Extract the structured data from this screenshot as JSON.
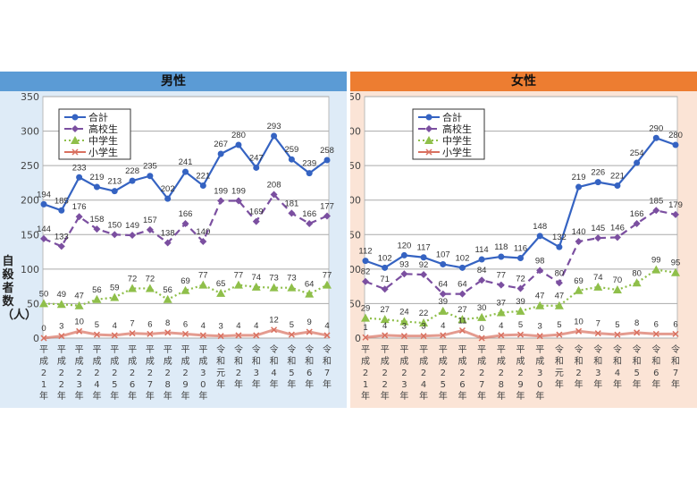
{
  "chart_data": [
    {
      "type": "line",
      "title": "男性",
      "ylabel": "自殺者数（人）",
      "ylim": [
        0,
        350
      ],
      "yticks": [
        0,
        50,
        100,
        150,
        200,
        250,
        300,
        350
      ],
      "grid": true,
      "legend": "top-left",
      "header_color": "#5b9bd5",
      "background_color": "#deebf7",
      "categories": [
        "平成21年",
        "平成22年",
        "平成23年",
        "平成24年",
        "平成25年",
        "平成26年",
        "平成27年",
        "平成28年",
        "平成29年",
        "平成30年",
        "令和元年",
        "令和2年",
        "令和3年",
        "令和4年",
        "令和5年",
        "令和6年",
        "令和7年"
      ],
      "series": [
        {
          "name": "合計",
          "color": "#3563c2",
          "marker": "circle",
          "dash": "solid",
          "values": [
            194,
            185,
            233,
            219,
            213,
            228,
            235,
            202,
            241,
            221,
            267,
            280,
            247,
            293,
            259,
            239,
            258
          ]
        },
        {
          "name": "高校生",
          "color": "#7b4fa0",
          "marker": "diamond",
          "dash": "dashed",
          "values": [
            144,
            133,
            176,
            158,
            150,
            149,
            157,
            138,
            166,
            140,
            199,
            199,
            169,
            208,
            181,
            166,
            177
          ]
        },
        {
          "name": "中学生",
          "color": "#8fbf4a",
          "marker": "triangle",
          "dash": "dotted",
          "values": [
            50,
            49,
            47,
            56,
            59,
            72,
            72,
            56,
            69,
            77,
            65,
            77,
            74,
            73,
            73,
            64,
            77
          ]
        },
        {
          "name": "小学生",
          "color": "#d9705f",
          "marker": "x",
          "dash": "solid",
          "values": [
            0,
            3,
            10,
            5,
            4,
            7,
            6,
            8,
            6,
            4,
            3,
            4,
            4,
            12,
            5,
            9,
            4
          ]
        }
      ]
    },
    {
      "type": "line",
      "title": "女性",
      "ylim": [
        0,
        350
      ],
      "yticks": [
        0,
        50,
        100,
        150,
        200,
        250,
        300,
        350
      ],
      "grid": true,
      "legend": "top-left",
      "header_color": "#ed7d31",
      "background_color": "#fbe4d6",
      "categories": [
        "平成21年",
        "平成22年",
        "平成23年",
        "平成24年",
        "平成25年",
        "平成26年",
        "平成27年",
        "平成28年",
        "平成29年",
        "平成30年",
        "令和元年",
        "令和2年",
        "令和3年",
        "令和4年",
        "令和5年",
        "令和6年",
        "令和7年"
      ],
      "series": [
        {
          "name": "合計",
          "color": "#3563c2",
          "marker": "circle",
          "dash": "solid",
          "values": [
            112,
            102,
            120,
            117,
            107,
            102,
            114,
            118,
            116,
            148,
            132,
            219,
            226,
            221,
            254,
            290,
            280
          ]
        },
        {
          "name": "高校生",
          "color": "#7b4fa0",
          "marker": "diamond",
          "dash": "dashed",
          "values": [
            82,
            71,
            93,
            92,
            64,
            64,
            84,
            77,
            72,
            98,
            80,
            140,
            145,
            146,
            166,
            185,
            179
          ]
        },
        {
          "name": "中学生",
          "color": "#8fbf4a",
          "marker": "triangle",
          "dash": "dotted",
          "values": [
            29,
            27,
            24,
            22,
            39,
            27,
            30,
            37,
            39,
            47,
            47,
            69,
            74,
            70,
            80,
            99,
            95
          ]
        },
        {
          "name": "小学生",
          "color": "#d9705f",
          "marker": "x",
          "dash": "solid",
          "values": [
            1,
            4,
            3,
            3,
            4,
            11,
            0,
            4,
            5,
            3,
            5,
            10,
            7,
            5,
            8,
            6,
            6
          ]
        }
      ]
    }
  ]
}
